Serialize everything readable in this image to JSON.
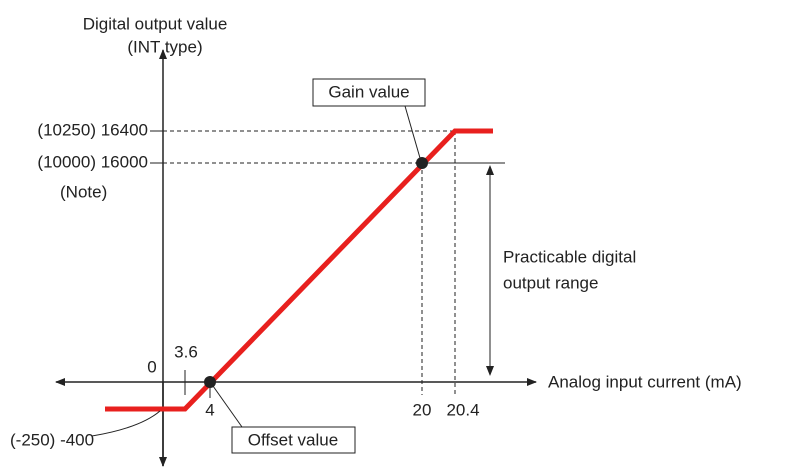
{
  "y_axis_title": [
    "Digital output value",
    "(INT type)"
  ],
  "x_axis_title": "Analog input current (mA)",
  "y_labels": [
    "(10250) 16400",
    "(10000) 16000",
    "(Note)",
    "0",
    "(-250) -400"
  ],
  "x_labels": [
    "3.6",
    "4",
    "20",
    "20.4"
  ],
  "callouts": {
    "gain": "Gain value",
    "offset": "Offset value"
  },
  "range_label": [
    "Practicable digital",
    "output range"
  ]
}
